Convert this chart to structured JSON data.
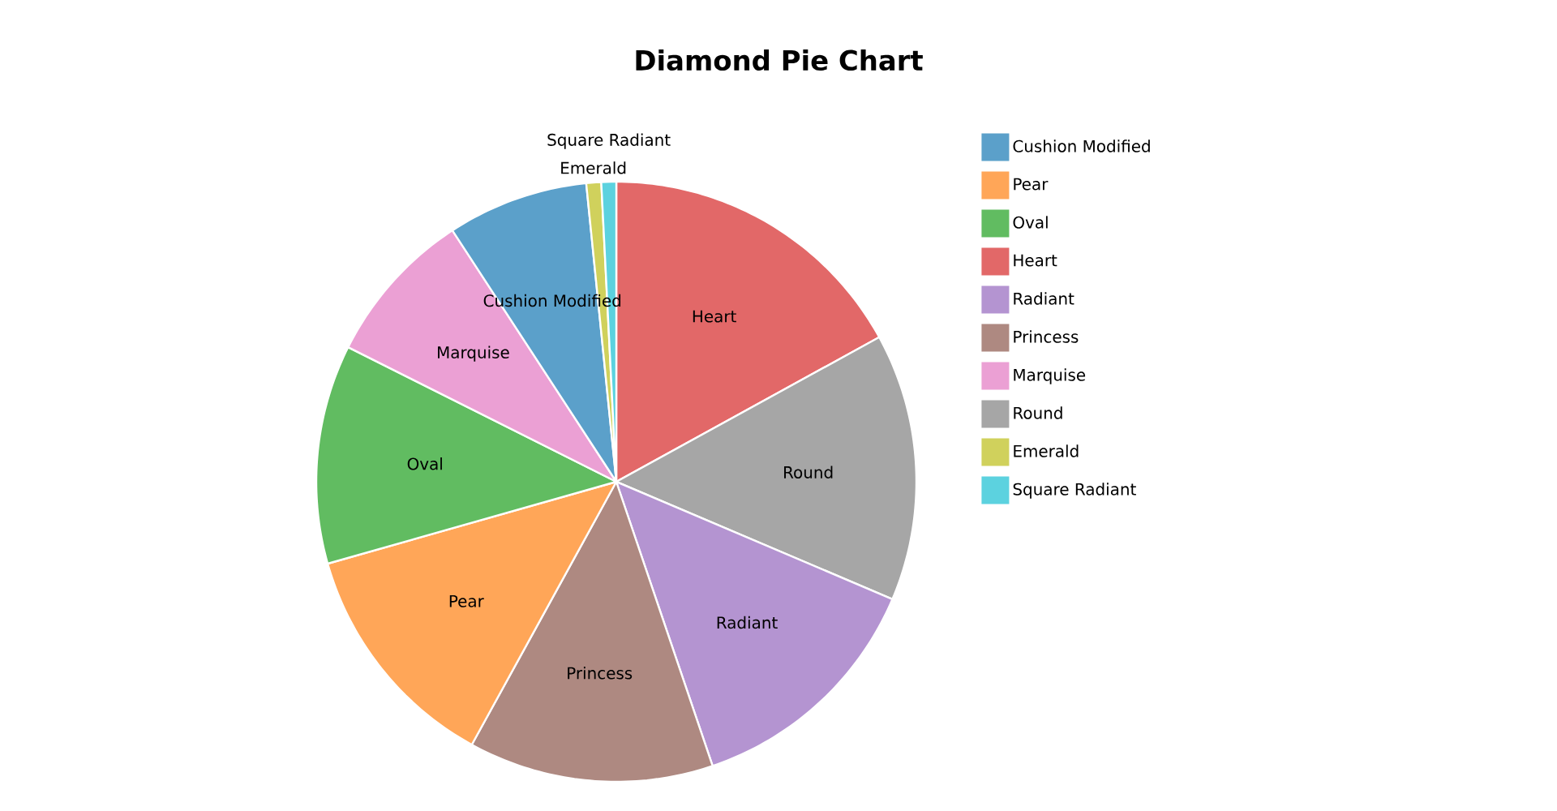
{
  "chart_data": {
    "type": "pie",
    "title": "Diamond Pie Chart",
    "categories": [
      "Cushion Modified",
      "Pear",
      "Oval",
      "Heart",
      "Radiant",
      "Princess",
      "Marquise",
      "Round",
      "Emerald",
      "Square Radiant"
    ],
    "values": [
      7.6,
      12.6,
      11.8,
      17.0,
      13.4,
      13.2,
      8.4,
      14.4,
      0.8,
      0.8
    ],
    "colors": [
      "#5ba0ca",
      "#ffa658",
      "#61bc61",
      "#e26868",
      "#b494d1",
      "#ae8981",
      "#eba0d4",
      "#a6a6a6",
      "#d0d15c",
      "#5cd2df"
    ],
    "legend": "right"
  }
}
